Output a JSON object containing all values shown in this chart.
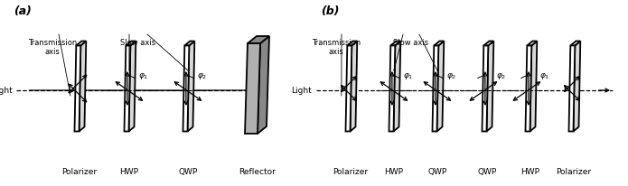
{
  "fig_width": 6.95,
  "fig_height": 2.06,
  "dpi": 100,
  "bg_color": "#ffffff",
  "plate_face_color": "#ffffff",
  "plate_edge_color": "#000000",
  "plate_side_color": "#cccccc",
  "reflector_face_color": "#aaaaaa",
  "reflector_side_color": "#888888",
  "panel_a": {
    "label": "(a)",
    "components_a": [
      "Polarizer",
      "HWP",
      "QWP",
      "Reflector"
    ],
    "light_label": "Light",
    "transmission_label": "Transmission\naxis",
    "slow_label": "Slow axis"
  },
  "panel_b": {
    "label": "(b)",
    "components_b": [
      "Polarizer",
      "HWP",
      "QWP",
      "QWP",
      "HWP",
      "Polarizer"
    ],
    "light_label": "Light",
    "transmission_label": "Transmission\naxis",
    "slow_label": "Slow axis"
  }
}
